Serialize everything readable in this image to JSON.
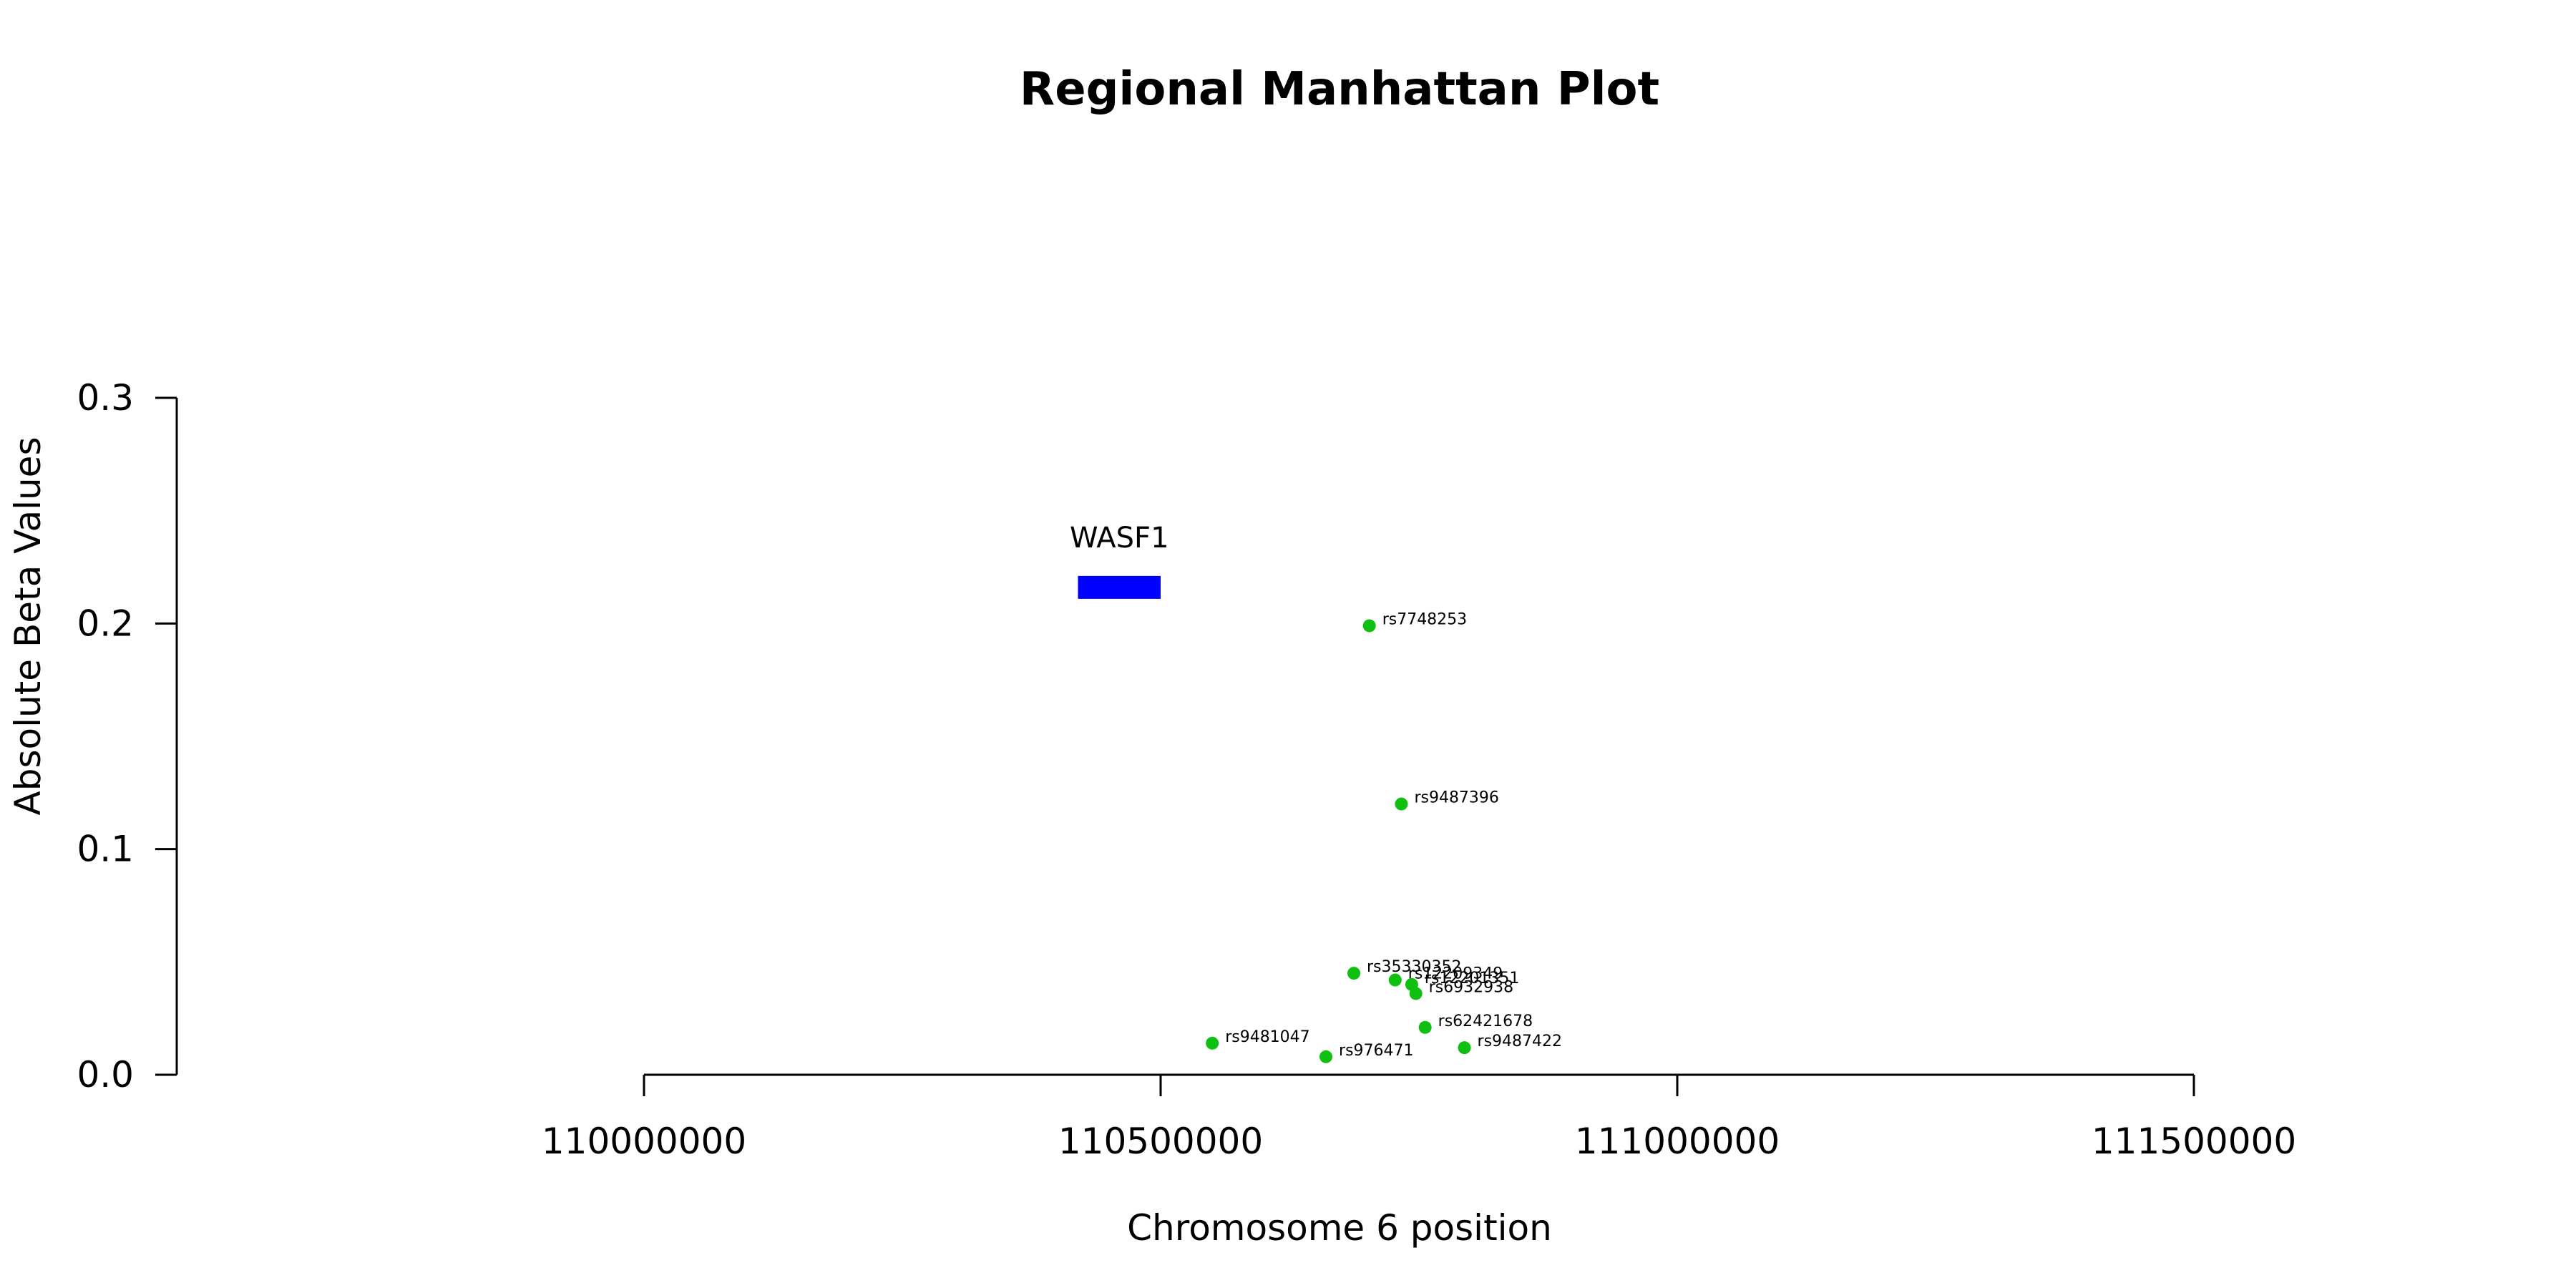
{
  "chart_data": {
    "type": "scatter",
    "title": "Regional Manhattan Plot",
    "xlabel": "Chromosome 6 position",
    "ylabel": "Absolute Beta Values",
    "xlim": [
      110000000,
      111500000
    ],
    "ylim": [
      0,
      0.3
    ],
    "x_ticks": [
      110000000,
      110500000,
      111000000,
      111500000
    ],
    "x_tick_labels": [
      "110000000",
      "110500000",
      "111000000",
      "111500000"
    ],
    "y_ticks": [
      0.0,
      0.1,
      0.2,
      0.3
    ],
    "y_tick_labels": [
      "0.0",
      "0.1",
      "0.2",
      "0.3"
    ],
    "grid": false,
    "point_color": "#10c010",
    "points": [
      {
        "label": "rs7748253",
        "x": 110702000,
        "y": 0.199
      },
      {
        "label": "rs9487396",
        "x": 110733000,
        "y": 0.12
      },
      {
        "label": "rs35330352",
        "x": 110687000,
        "y": 0.045
      },
      {
        "label": "rs12209349",
        "x": 110727000,
        "y": 0.042
      },
      {
        "label": "rs12201351",
        "x": 110743000,
        "y": 0.04
      },
      {
        "label": "rs6932938",
        "x": 110747000,
        "y": 0.036
      },
      {
        "label": "rs62421678",
        "x": 110756000,
        "y": 0.021
      },
      {
        "label": "rs9487422",
        "x": 110794000,
        "y": 0.012
      },
      {
        "label": "rs9481047",
        "x": 110550000,
        "y": 0.014
      },
      {
        "label": "rs976471",
        "x": 110660000,
        "y": 0.008
      }
    ],
    "genes": [
      {
        "name": "WASF1",
        "start": 110420000,
        "end": 110500000,
        "y": 0.216,
        "color": "#0000ff"
      }
    ]
  }
}
